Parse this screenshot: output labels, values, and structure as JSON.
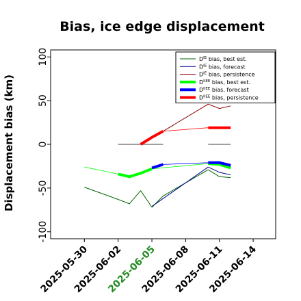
{
  "chart_data": {
    "type": "line",
    "title": "Bias, ice edge displacement",
    "ylabel": "Displacement bias (km)",
    "xlabel": "",
    "xlim": [
      "2025-05-27",
      "2025-06-16"
    ],
    "ylim": [
      -108,
      108
    ],
    "grid": false,
    "legend_position": "top-right",
    "x_ticks": [
      "2025-05-30",
      "2025-06-02",
      "2025-06-05",
      "2025-06-08",
      "2025-06-11",
      "2025-06-14"
    ],
    "x_tick_colors": [
      "#000000",
      "#000000",
      "#228b22",
      "#000000",
      "#000000",
      "#000000"
    ],
    "y_ticks": [
      100,
      50,
      0,
      -50,
      -100
    ],
    "series": [
      {
        "name": "D$^{IE}$ bias, best est.",
        "color": "#006400",
        "width": 1,
        "segments": [
          [
            [
              "2025-05-30",
              -49
            ],
            [
              "2025-06-02",
              -63
            ]
          ],
          [
            [
              "2025-06-02",
              -63
            ],
            [
              "2025-06-03",
              -68
            ],
            [
              "2025-06-04",
              -53
            ],
            [
              "2025-06-05",
              -72
            ],
            [
              "2025-06-06",
              -59
            ]
          ],
          [
            [
              "2025-06-06",
              -59
            ],
            [
              "2025-06-10",
              -29
            ]
          ],
          [
            [
              "2025-06-10",
              -29
            ],
            [
              "2025-06-11",
              -37
            ],
            [
              "2025-06-12",
              -38
            ]
          ]
        ]
      },
      {
        "name": "D$^{IE}$ bias, forecast",
        "color": "#00008b",
        "width": 1,
        "segments": [
          [
            [
              "2025-06-05",
              -71
            ],
            [
              "2025-06-06",
              -62
            ]
          ],
          [
            [
              "2025-06-06",
              -62
            ],
            [
              "2025-06-10",
              -26
            ]
          ],
          [
            [
              "2025-06-10",
              -26
            ],
            [
              "2025-06-11",
              -32
            ],
            [
              "2025-06-12",
              -35
            ]
          ]
        ]
      },
      {
        "name": "D$^{IE}$ bias, persistence",
        "color": "#8b0000",
        "width": 1,
        "segments": [
          [
            [
              "2025-06-06",
              15
            ],
            [
              "2025-06-10",
              46
            ]
          ],
          [
            [
              "2025-06-10",
              46
            ],
            [
              "2025-06-11",
              41
            ],
            [
              "2025-06-12",
              44
            ]
          ]
        ]
      },
      {
        "name": "D$^{IIEE}$ bias, best est.",
        "color": "#00ff00",
        "width": 4,
        "segments": [
          [
            [
              "2025-06-02",
              -34
            ],
            [
              "2025-06-03",
              -37
            ],
            [
              "2025-06-04",
              -33
            ],
            [
              "2025-06-05",
              -28
            ]
          ],
          [
            [
              "2025-06-10",
              -22
            ],
            [
              "2025-06-11",
              -23
            ],
            [
              "2025-06-12",
              -27
            ]
          ]
        ],
        "thin_segments": [
          [
            [
              "2025-05-30",
              -26
            ],
            [
              "2025-06-02",
              -34
            ]
          ],
          [
            [
              "2025-06-05",
              -28
            ],
            [
              "2025-06-10",
              -22
            ]
          ]
        ]
      },
      {
        "name": "D$^{IIEE}$ bias, forecast",
        "color": "#0000ff",
        "width": 4,
        "segments": [
          [
            [
              "2025-06-05",
              -27
            ],
            [
              "2025-06-06",
              -23
            ]
          ],
          [
            [
              "2025-06-10",
              -21
            ],
            [
              "2025-06-11",
              -21
            ],
            [
              "2025-06-12",
              -24
            ]
          ]
        ],
        "thin_segments": [
          [
            [
              "2025-06-06",
              -23
            ],
            [
              "2025-06-10",
              -21
            ]
          ]
        ]
      },
      {
        "name": "D$^{IIEE}$ bias, persistence",
        "color": "#ff0000",
        "width": 4,
        "segments": [
          [
            [
              "2025-06-04",
              0
            ],
            [
              "2025-06-05",
              8
            ],
            [
              "2025-06-06",
              15
            ]
          ],
          [
            [
              "2025-06-10",
              19
            ],
            [
              "2025-06-11",
              19
            ],
            [
              "2025-06-12",
              19
            ]
          ]
        ],
        "thin_segments": [
          [
            [
              "2025-06-06",
              15
            ],
            [
              "2025-06-10",
              19
            ]
          ]
        ]
      }
    ],
    "zero_reference": {
      "color": "#808080",
      "segments": [
        [
          [
            "2025-06-02",
            0
          ],
          [
            "2025-06-06",
            0
          ]
        ],
        [
          [
            "2025-06-10",
            0
          ],
          [
            "2025-06-12",
            0
          ]
        ]
      ]
    }
  }
}
